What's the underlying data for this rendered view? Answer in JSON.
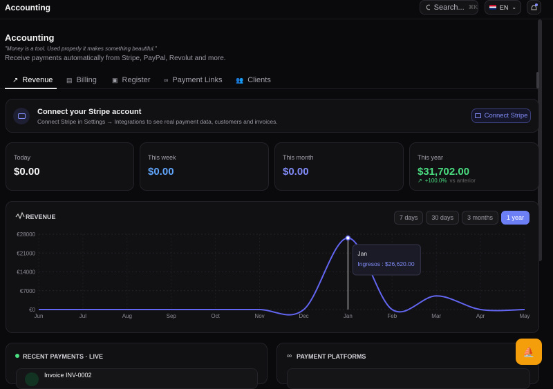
{
  "topbar": {
    "title": "Accounting",
    "search": "Search...",
    "shortcut": "⌘K",
    "language": "EN"
  },
  "header": {
    "title": "Accounting",
    "quote": "\"Money is a tool. Used properly it makes something beautiful.\"",
    "subtitle": "Receive payments automatically from Stripe, PayPal, Revolut and more."
  },
  "tabs": [
    "Revenue",
    "Billing",
    "Register",
    "Payment Links",
    "Clients"
  ],
  "stripe": {
    "title": "Connect your Stripe account",
    "text": "Connect Stripe in Settings → Integrations to see real payment data, customers and invoices.",
    "button": "Connect Stripe"
  },
  "stats": [
    {
      "label": "Today",
      "value": "$0.00"
    },
    {
      "label": "This week",
      "value": "$0.00"
    },
    {
      "label": "This month",
      "value": "$0.00"
    },
    {
      "label": "This year",
      "value": "$31,702.00",
      "change": "+100.0%",
      "note": "vs anterior"
    }
  ],
  "chart_data": {
    "type": "line",
    "title": "REVENUE",
    "ranges": [
      "7 days",
      "30 days",
      "3 months",
      "1 year"
    ],
    "categories": [
      "Jun",
      "Jul",
      "Aug",
      "Sep",
      "Oct",
      "Nov",
      "Dec",
      "Jan",
      "Feb",
      "Mar",
      "Apr",
      "May"
    ],
    "series": [
      {
        "name": "Ingresos",
        "color": "#6366f1",
        "values": [
          0,
          0,
          0,
          0,
          0,
          0,
          0,
          26620,
          0,
          5082,
          0,
          0
        ]
      }
    ],
    "ylim": [
      0,
      28000
    ],
    "yticks": [
      {
        "value": 0,
        "label": "€0"
      },
      {
        "value": 7000,
        "label": "€7000"
      },
      {
        "value": 14000,
        "label": "€14000"
      },
      {
        "value": 21000,
        "label": "€21000"
      },
      {
        "value": 28000,
        "label": "€28000"
      }
    ],
    "grid": true,
    "tooltip": {
      "title": "Jan",
      "text": "Ingresos : $26,620.00"
    }
  },
  "recent_payments": {
    "title": "RECENT PAYMENTS · LIVE",
    "items": [
      "Invoice INV-0002"
    ]
  },
  "platforms": {
    "title": "PAYMENT PLATFORMS"
  }
}
